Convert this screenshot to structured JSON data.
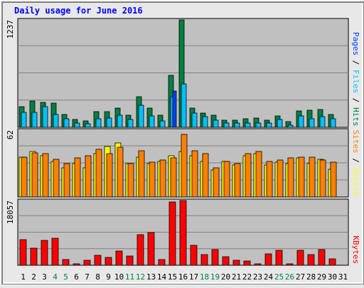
{
  "chart_data": [
    {
      "type": "bar",
      "title": "Daily usage for June 2016",
      "categories": [
        "1",
        "2",
        "3",
        "4",
        "5",
        "6",
        "7",
        "8",
        "9",
        "10",
        "11",
        "12",
        "13",
        "14",
        "15",
        "16",
        "17",
        "18",
        "19",
        "20",
        "21",
        "22",
        "23",
        "24",
        "25",
        "26",
        "27",
        "28",
        "29",
        "30",
        "31"
      ],
      "weekend_days": [
        "4",
        "5",
        "11",
        "12",
        "18",
        "19",
        "25",
        "26"
      ],
      "ymax_label": "1237",
      "ylim": [
        0,
        1237
      ],
      "right_label": [
        "Pages",
        "Files",
        "Hits"
      ],
      "series": [
        {
          "name": "Hits",
          "color": "#008040",
          "values": [
            240,
            300,
            290,
            280,
            150,
            90,
            70,
            180,
            180,
            220,
            140,
            350,
            225,
            140,
            600,
            1237,
            220,
            160,
            140,
            80,
            80,
            100,
            110,
            80,
            130,
            65,
            190,
            195,
            205,
            150,
            0
          ]
        },
        {
          "name": "Files",
          "color": "#00c0ff",
          "values": [
            175,
            170,
            240,
            150,
            100,
            50,
            40,
            100,
            110,
            140,
            90,
            250,
            130,
            75,
            350,
            500,
            160,
            125,
            85,
            50,
            50,
            50,
            50,
            50,
            90,
            25,
            130,
            95,
            125,
            95,
            0
          ]
        },
        {
          "name": "Pages",
          "color": "#0040ff",
          "values": [
            0,
            0,
            0,
            0,
            0,
            0,
            0,
            0,
            0,
            0,
            0,
            0,
            0,
            0,
            420,
            0,
            0,
            0,
            0,
            0,
            0,
            0,
            0,
            0,
            0,
            0,
            0,
            0,
            0,
            0,
            0
          ]
        }
      ]
    },
    {
      "type": "bar",
      "ymax_label": "62",
      "ylim": [
        0,
        62
      ],
      "right_label": [
        "Sites",
        "Visits"
      ],
      "series": [
        {
          "name": "Visits",
          "color": "#ffff00",
          "values": [
            37,
            42,
            38,
            33,
            27,
            31,
            27,
            40,
            47,
            50,
            31,
            37,
            31,
            33,
            38,
            42,
            38,
            33,
            25,
            33,
            30,
            38,
            40,
            30,
            32,
            31,
            36,
            31,
            35,
            26,
            0
          ]
        },
        {
          "name": "Sites",
          "color": "#ff8000",
          "values": [
            37,
            41,
            40,
            35,
            31,
            36,
            38,
            44,
            40,
            46,
            31,
            43,
            32,
            34,
            36,
            58,
            43,
            40,
            27,
            33,
            31,
            40,
            42,
            33,
            34,
            36,
            37,
            37,
            34,
            32,
            0
          ]
        }
      ]
    },
    {
      "type": "bar",
      "ymax_label": "18057",
      "ylim": [
        0,
        18057
      ],
      "right_label": [
        "KBytes"
      ],
      "series": [
        {
          "name": "KBytes",
          "color": "#ff0000",
          "values": [
            7200,
            4800,
            7000,
            7500,
            1600,
            300,
            1400,
            2700,
            2200,
            4000,
            2600,
            8500,
            9200,
            1500,
            17700,
            18057,
            5600,
            3000,
            4300,
            2400,
            1300,
            1200,
            300,
            3100,
            4200,
            300,
            4200,
            3000,
            4300,
            1800,
            0
          ]
        }
      ]
    }
  ]
}
